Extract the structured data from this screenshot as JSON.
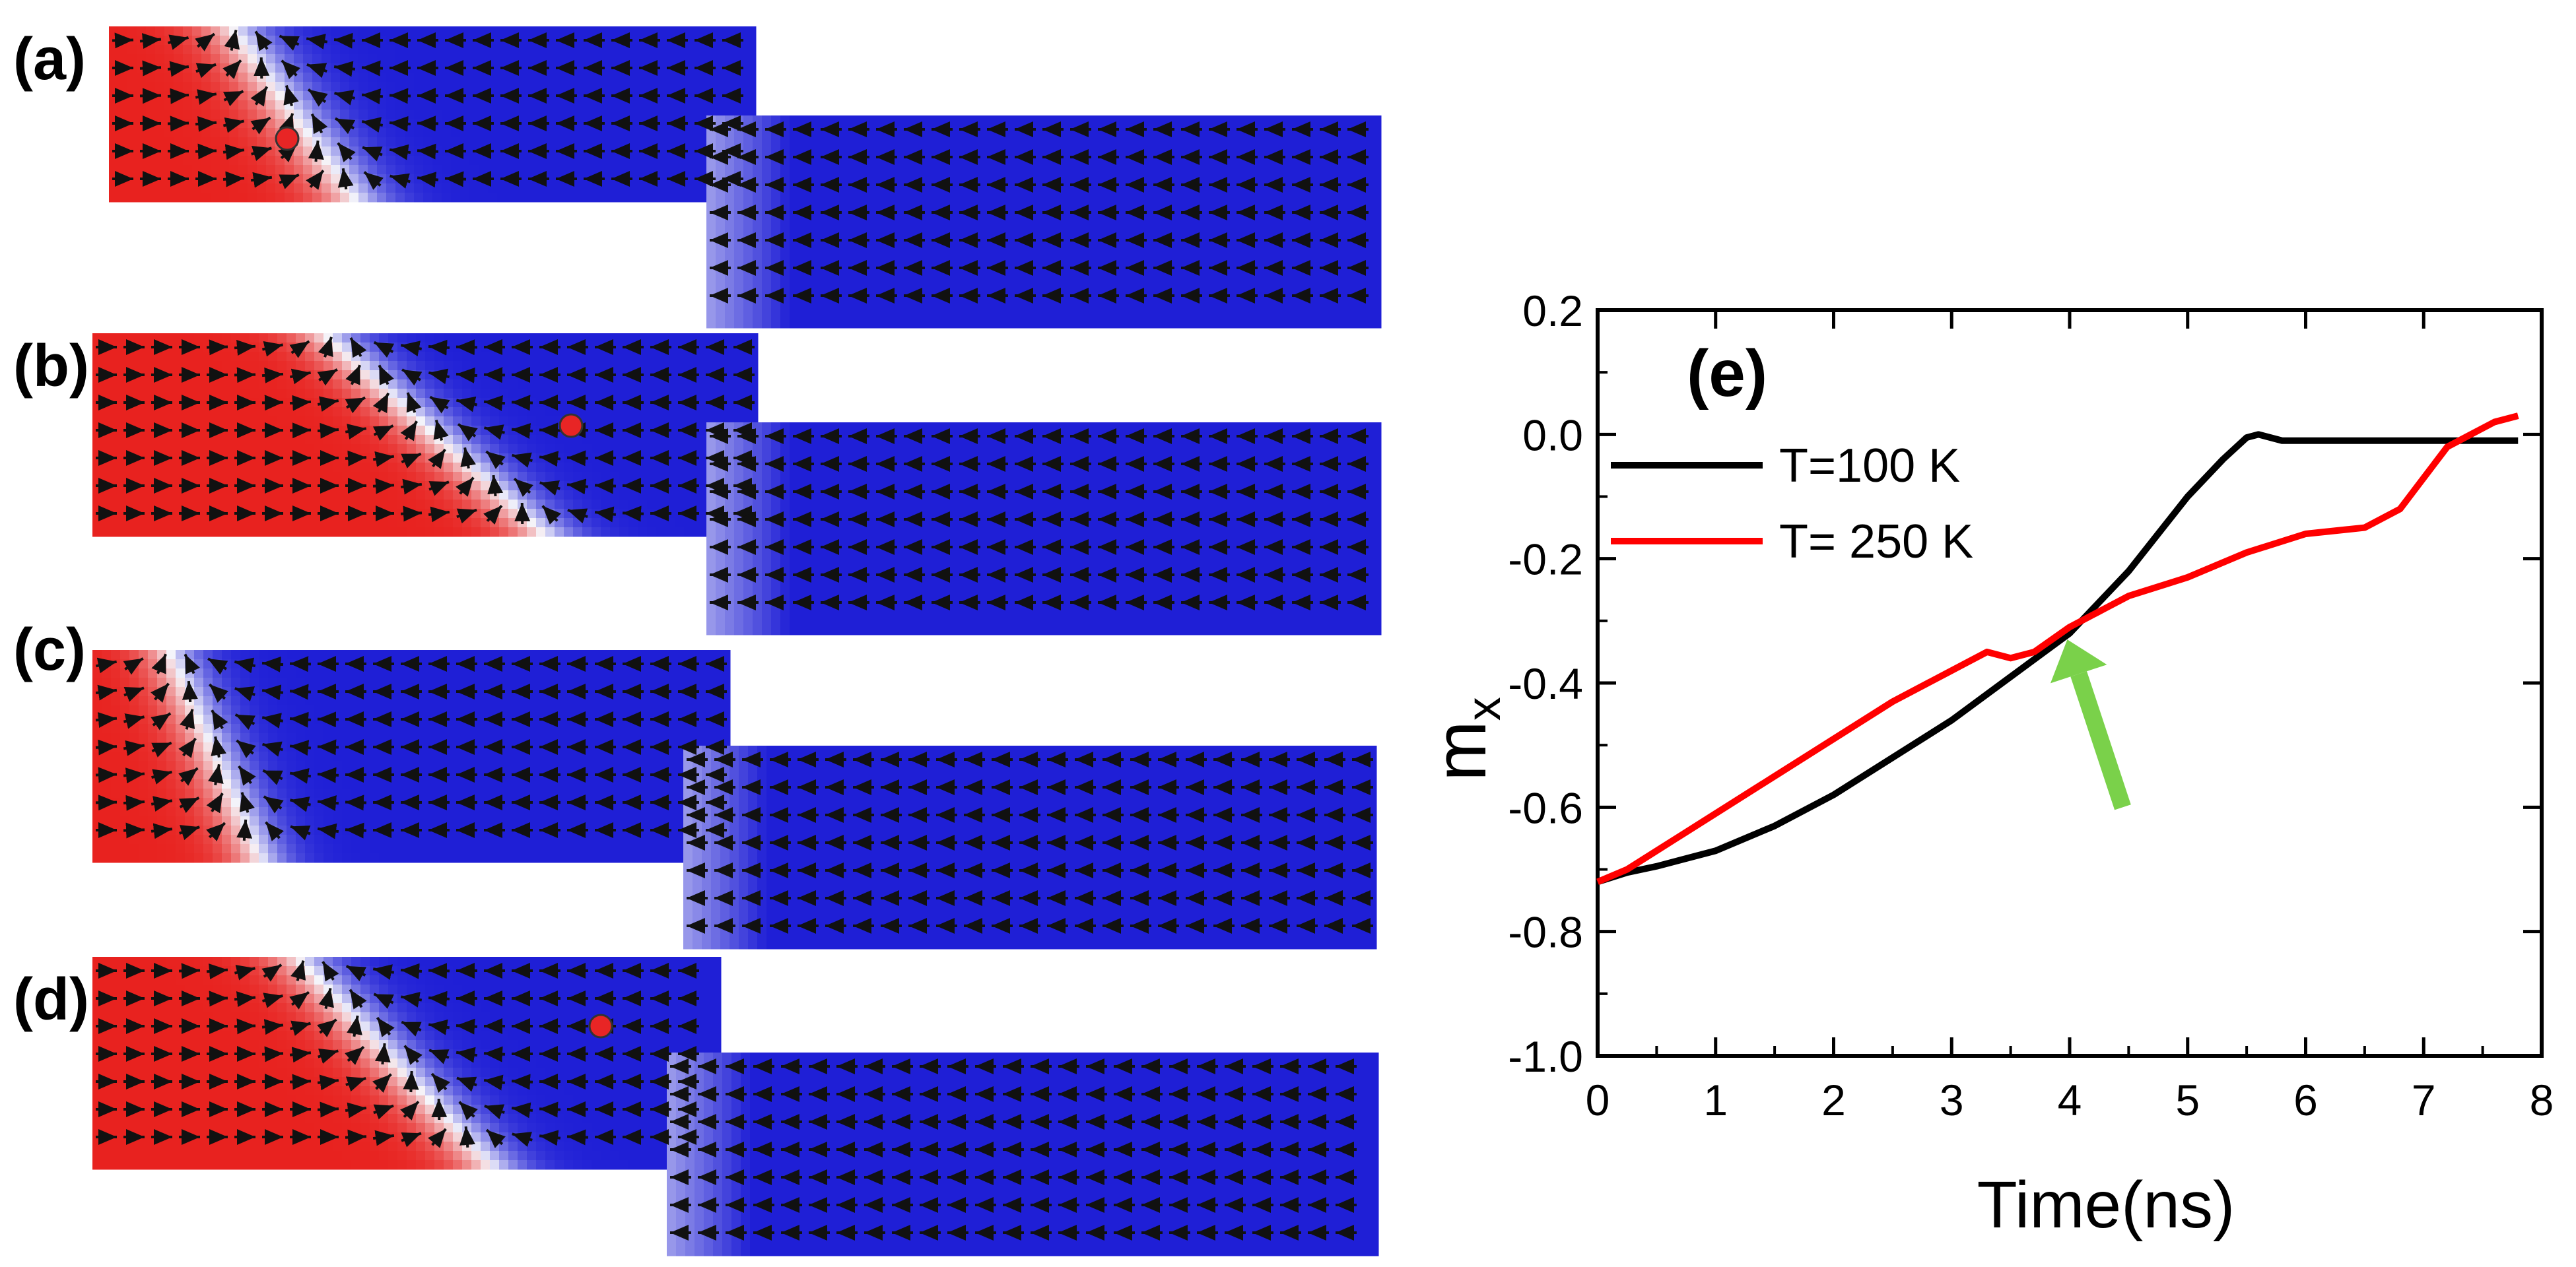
{
  "panels": [
    {
      "label": "(a)",
      "wall_top": 0.19,
      "wall_bottom": 0.38,
      "wall_tilt": 0.12,
      "dot": true
    },
    {
      "label": "(b)",
      "wall_top": 0.35,
      "wall_bottom": 0.68,
      "wall_tilt": 0.1,
      "dot": true
    },
    {
      "label": "(c)",
      "wall_top": 0.12,
      "wall_bottom": 0.26,
      "wall_tilt": 0.06,
      "dot": false
    },
    {
      "label": "(d)",
      "wall_top": 0.33,
      "wall_bottom": 0.64,
      "wall_tilt": 0.12,
      "dot": true
    }
  ],
  "colors": {
    "red_domain": "#e8221f",
    "blue_domain": "#1f1fd6",
    "arrow": "#111111",
    "dot": "#e82525",
    "green_arrow": "#7ad14a"
  },
  "chart_data": {
    "type": "line",
    "panel_label": "(e)",
    "xlabel": "Time(ns)",
    "ylabel_main": "m",
    "ylabel_sub": "x",
    "xlim": [
      0,
      8
    ],
    "ylim": [
      -1.0,
      0.2
    ],
    "xticks": [
      0,
      1,
      2,
      3,
      4,
      5,
      6,
      7,
      8
    ],
    "yticks": [
      0.2,
      0.0,
      -0.2,
      -0.4,
      -0.6,
      -0.8,
      -1.0
    ],
    "xtick_labels": [
      "0",
      "1",
      "2",
      "3",
      "4",
      "5",
      "6",
      "7",
      "8"
    ],
    "ytick_labels": [
      "0.2",
      "0.0",
      "-0.2",
      "-0.4",
      "-0.6",
      "-0.8",
      "-1.0"
    ],
    "legend_position": "upper-left",
    "series": [
      {
        "name": "T=100 K",
        "color": "#000000",
        "x": [
          0,
          0.25,
          0.5,
          1.0,
          1.5,
          2.0,
          2.5,
          3.0,
          3.5,
          4.0,
          4.5,
          5.0,
          5.3,
          5.5,
          5.6,
          5.8,
          6.5,
          7.0,
          7.5,
          7.8
        ],
        "y": [
          -0.72,
          -0.705,
          -0.695,
          -0.67,
          -0.63,
          -0.58,
          -0.52,
          -0.46,
          -0.39,
          -0.32,
          -0.22,
          -0.1,
          -0.04,
          -0.005,
          0.0,
          -0.01,
          -0.01,
          -0.01,
          -0.01,
          -0.01
        ]
      },
      {
        "name": "T= 250 K",
        "color": "#ff0000",
        "x": [
          0,
          0.25,
          0.5,
          1.0,
          1.5,
          2.0,
          2.5,
          3.0,
          3.3,
          3.5,
          3.7,
          4.0,
          4.3,
          4.5,
          5.0,
          5.5,
          6.0,
          6.5,
          6.8,
          7.0,
          7.2,
          7.4,
          7.6,
          7.8
        ],
        "y": [
          -0.72,
          -0.7,
          -0.67,
          -0.61,
          -0.55,
          -0.49,
          -0.43,
          -0.38,
          -0.35,
          -0.36,
          -0.35,
          -0.31,
          -0.28,
          -0.26,
          -0.23,
          -0.19,
          -0.16,
          -0.15,
          -0.12,
          -0.07,
          -0.02,
          0.0,
          0.02,
          0.03
        ]
      }
    ],
    "annotation_arrow": {
      "tail": [
        4.45,
        -0.6
      ],
      "head": [
        3.98,
        -0.33
      ]
    }
  }
}
